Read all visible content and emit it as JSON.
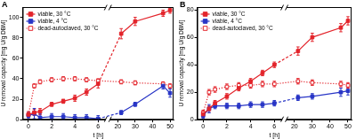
{
  "chart_data": [
    {
      "type": "line",
      "title": "A",
      "xlabel": "t [h]",
      "ylabel": "U removal capacity [mg U/g DBM]",
      "x": [
        0,
        0.5,
        1,
        2,
        3,
        4,
        5,
        6,
        22,
        30,
        46,
        50
      ],
      "xlim": [
        -0.5,
        52
      ],
      "xticks": [
        0,
        2,
        4,
        6,
        20,
        30,
        40,
        50
      ],
      "ylim": [
        0,
        110
      ],
      "yticks": [
        0,
        20,
        40,
        60,
        80,
        100
      ],
      "grid": false,
      "legend": "upper left",
      "series": [
        {
          "name": "viable, 30 °C",
          "color": "#e3242b",
          "marker": "square",
          "line_style": "solid",
          "values": [
            5,
            7,
            8,
            15,
            18,
            21,
            27,
            35,
            84,
            96,
            104,
            107
          ],
          "errors": [
            3,
            3,
            3,
            2,
            2,
            3,
            3,
            4,
            5,
            4,
            3,
            3
          ]
        },
        {
          "name": "viable, 4 °C",
          "color": "#2835c6",
          "marker": "square",
          "line_style": "solid",
          "values": [
            4,
            6,
            2,
            3,
            3,
            2,
            2,
            1,
            7,
            15,
            33,
            26
          ],
          "errors": [
            3,
            5,
            4,
            3,
            3,
            3,
            3,
            3,
            2,
            2,
            3,
            4
          ]
        },
        {
          "name": "dead-autoclaved, 30 °C",
          "color": "#e3242b",
          "marker": "square_open",
          "line_style": "dotted",
          "values": [
            5,
            33,
            37,
            39,
            40,
            40,
            39,
            38,
            37,
            36,
            35,
            33
          ],
          "errors": [
            2,
            2,
            2,
            2,
            2,
            2,
            2,
            2,
            2,
            2,
            2,
            2
          ]
        }
      ]
    },
    {
      "type": "line",
      "title": "B",
      "xlabel": "t [h]",
      "ylabel": "U removal capacity [mg U/g DBM]",
      "x": [
        0,
        0.5,
        1,
        2,
        3,
        4,
        5,
        6,
        22,
        30,
        46,
        50
      ],
      "xlim": [
        -0.5,
        52
      ],
      "xticks": [
        0,
        2,
        4,
        6,
        20,
        30,
        40,
        50
      ],
      "ylim": [
        0,
        82
      ],
      "yticks": [
        0,
        20,
        40,
        60,
        80
      ],
      "grid": false,
      "legend": "upper left",
      "series": [
        {
          "name": "viable, 30 °C",
          "color": "#e3242b",
          "marker": "square",
          "line_style": "solid",
          "values": [
            4,
            8,
            12,
            17,
            23,
            28,
            34,
            40,
            50,
            60,
            67,
            72
          ],
          "errors": [
            2,
            2,
            2,
            2,
            2,
            2,
            2,
            2,
            3,
            3,
            3,
            3
          ]
        },
        {
          "name": "viable, 4 °C",
          "color": "#2835c6",
          "marker": "square",
          "line_style": "solid",
          "values": [
            3,
            8,
            10,
            10,
            10,
            11,
            11,
            12,
            16,
            17,
            20,
            21
          ],
          "errors": [
            2,
            3,
            2,
            2,
            2,
            2,
            2,
            2,
            2,
            2,
            3,
            3
          ]
        },
        {
          "name": "dead-autoclaved, 30 °C",
          "color": "#e3242b",
          "marker": "square_open",
          "line_style": "dotted",
          "values": [
            5,
            20,
            22,
            24,
            25,
            25,
            26,
            26,
            28,
            27,
            26,
            25
          ],
          "errors": [
            2,
            2,
            2,
            2,
            2,
            2,
            2,
            2,
            2,
            2,
            2,
            2
          ]
        }
      ]
    }
  ]
}
